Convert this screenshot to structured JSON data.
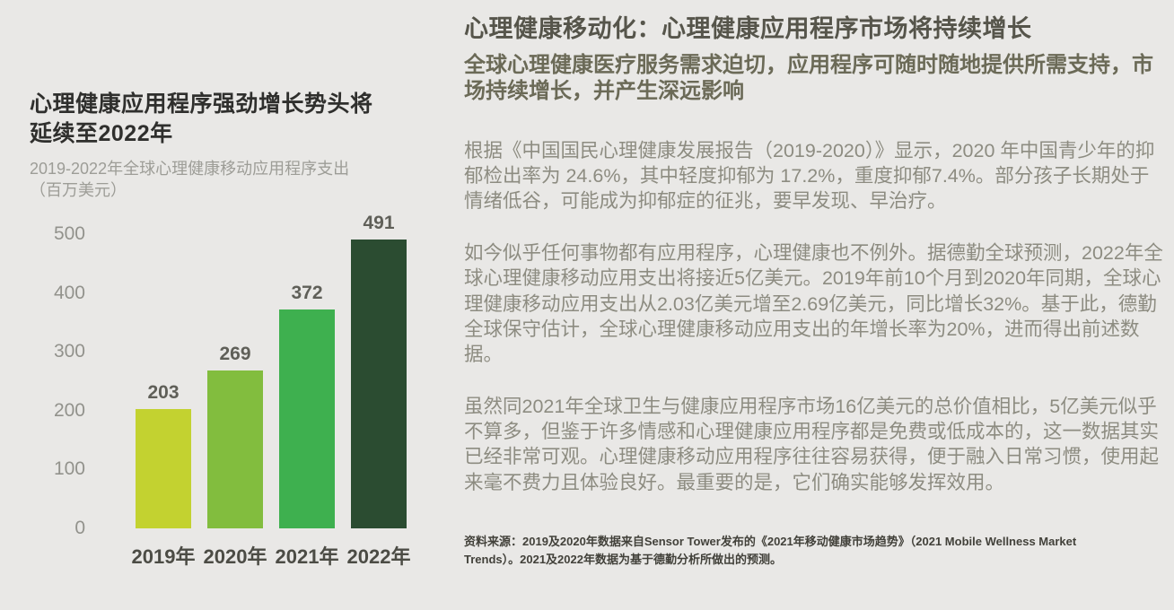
{
  "left": {
    "title": "心理健康应用程序强劲增长势头将\n延续至2022年",
    "subtitle": "2019-2022年全球心理健康移动应用程序支出\n（百万美元）"
  },
  "chart_data": {
    "type": "bar",
    "title": "心理健康应用程序强劲增长势头将延续至2022年",
    "subtitle": "2019-2022年全球心理健康移动应用程序支出（百万美元）",
    "categories": [
      "2019年",
      "2020年",
      "2021年",
      "2022年"
    ],
    "values": [
      203,
      269,
      372,
      491
    ],
    "bar_colors": [
      "#c3d230",
      "#82bd3e",
      "#3eb04f",
      "#2b4c31"
    ],
    "ylim": [
      0,
      500
    ],
    "yticks": [
      0,
      100,
      200,
      300,
      400,
      500
    ],
    "grid": false,
    "value_labels": true,
    "legend": false
  },
  "right": {
    "title": "心理健康移动化：心理健康应用程序市场将持续增长",
    "subtitle": "全球心理健康医疗服务需求迫切，应用程序可随时随地提供所需支持，市场持续增长，并产生深远影响",
    "paragraphs": [
      "根据《中国国民心理健康发展报告（2019-2020）》显示，2020 年中国青少年的抑郁检出率为 24.6%，其中轻度抑郁为 17.2%，重度抑郁7.4%。部分孩子长期处于情绪低谷，可能成为抑郁症的征兆，要早发现、早治疗。",
      "如今似乎任何事物都有应用程序，心理健康也不例外。据德勤全球预测，2022年全球心理健康移动应用支出将接近5亿美元。2019年前10个月到2020年同期，全球心理健康移动应用支出从2.03亿美元增至2.69亿美元，同比增长32%。基于此，德勤全球保守估计，全球心理健康移动应用支出的年增长率为20%，进而得出前述数据。",
      "虽然同2021年全球卫生与健康应用程序市场16亿美元的总价值相比，5亿美元似乎不算多，但鉴于许多情感和心理健康应用程序都是免费或低成本的，这一数据其实已经非常可观。心理健康移动应用程序往往容易获得，便于融入日常习惯，使用起来毫不费力且体验良好。最重要的是，它们确实能够发挥效用。"
    ],
    "source": "资料来源：2019及2020年数据来自Sensor Tower发布的《2021年移动健康市场趋势》（2021 Mobile Wellness Market Trends）。2021及2022年数据为基于德勤分析所做出的预测。"
  },
  "colors": {
    "background": "#e9e8e6",
    "chart_title": "#2f2f2d",
    "chart_subtitle": "#9d9d97",
    "axis_labels": "#92928c",
    "value_labels": "#5f5f58",
    "article_title": "#56554b",
    "article_subtitle": "#6b6a57",
    "body_text": "#8d8c81"
  }
}
